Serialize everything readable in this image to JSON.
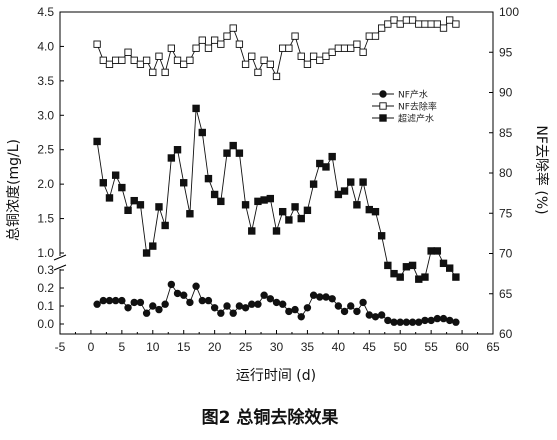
{
  "chart_data": {
    "type": "line",
    "x": [
      1,
      2,
      3,
      4,
      5,
      6,
      7,
      8,
      9,
      10,
      11,
      12,
      13,
      14,
      15,
      16,
      17,
      18,
      19,
      20,
      21,
      22,
      23,
      24,
      25,
      26,
      27,
      28,
      29,
      30,
      31,
      32,
      33,
      34,
      35,
      36,
      37,
      38,
      39,
      40,
      41,
      42,
      43,
      44,
      45,
      46,
      47,
      48,
      49,
      50,
      51,
      52,
      53,
      54,
      55,
      56,
      57,
      58,
      59
    ],
    "series": [
      {
        "name": "NF产水",
        "axis": "left",
        "marker": "circle",
        "values": [
          0.11,
          0.13,
          0.13,
          0.13,
          0.13,
          0.09,
          0.12,
          0.12,
          0.06,
          0.1,
          0.08,
          0.11,
          0.22,
          0.17,
          0.16,
          0.12,
          0.21,
          0.13,
          0.13,
          0.09,
          0.06,
          0.1,
          0.06,
          0.1,
          0.09,
          0.11,
          0.11,
          0.16,
          0.14,
          0.12,
          0.11,
          0.07,
          0.08,
          0.04,
          0.09,
          0.16,
          0.15,
          0.15,
          0.14,
          0.1,
          0.07,
          0.1,
          0.07,
          0.12,
          0.05,
          0.04,
          0.05,
          0.02,
          0.01,
          0.01,
          0.01,
          0.01,
          0.01,
          0.02,
          0.02,
          0.03,
          0.03,
          0.02,
          0.01
        ]
      },
      {
        "name": "NF去除率",
        "axis": "right",
        "marker": "square-open",
        "values": [
          96.0,
          94.0,
          93.5,
          94.0,
          94.0,
          95.0,
          94.0,
          93.5,
          94.0,
          92.5,
          94.5,
          92.5,
          95.5,
          94.0,
          93.5,
          94.0,
          95.5,
          96.5,
          95.5,
          96.5,
          96.0,
          97.0,
          98.0,
          96.0,
          93.5,
          94.5,
          92.5,
          94.0,
          93.5,
          92.0,
          95.5,
          95.5,
          97.0,
          94.5,
          93.5,
          94.5,
          94.0,
          94.5,
          95.0,
          95.5,
          95.5,
          95.5,
          96.0,
          95.0,
          97.0,
          97.0,
          98.0,
          98.5,
          99.0,
          98.5,
          99.0,
          99.0,
          98.5,
          98.5,
          98.5,
          98.5,
          98.0,
          99.0,
          98.5
        ]
      },
      {
        "name": "超滤产水",
        "axis": "left",
        "marker": "square",
        "values": [
          2.62,
          2.02,
          1.8,
          2.13,
          1.95,
          1.62,
          1.76,
          1.7,
          1.0,
          1.1,
          1.67,
          1.4,
          2.38,
          2.5,
          2.02,
          1.57,
          3.1,
          2.75,
          2.08,
          1.85,
          1.75,
          2.45,
          2.56,
          2.45,
          1.7,
          1.32,
          1.75,
          1.77,
          1.79,
          1.32,
          1.6,
          1.48,
          1.67,
          1.5,
          1.62,
          2.0,
          2.3,
          2.25,
          2.4,
          1.85,
          1.9,
          2.03,
          1.7,
          2.03,
          1.63,
          1.6,
          1.25,
          0.82,
          0.7,
          0.65,
          0.8,
          0.82,
          0.62,
          0.65,
          1.03,
          1.03,
          0.85,
          0.78,
          0.65
        ]
      }
    ],
    "xlabel": "运行时间 (d)",
    "ylabel_left": "总铜浓度(mg/L)",
    "ylabel_right": "NF去除率 (%)",
    "xlim": [
      -5,
      65
    ],
    "xticks": [
      -5,
      0,
      5,
      10,
      15,
      20,
      25,
      30,
      35,
      40,
      45,
      50,
      55,
      60,
      65
    ],
    "ylim_left": [
      0,
      4.5
    ],
    "yticks_left_upper": [
      1.0,
      1.5,
      2.0,
      2.5,
      3.0,
      3.5,
      4.0,
      4.5
    ],
    "yticks_left_lower": [
      0.0,
      0.1,
      0.2,
      0.3
    ],
    "ylim_right": [
      60,
      100
    ],
    "yticks_right": [
      60,
      65,
      70,
      75,
      80,
      85,
      90,
      95,
      100
    ],
    "grid": false,
    "legend_position": "top-right",
    "caption": "图2  总铜去除效果"
  }
}
